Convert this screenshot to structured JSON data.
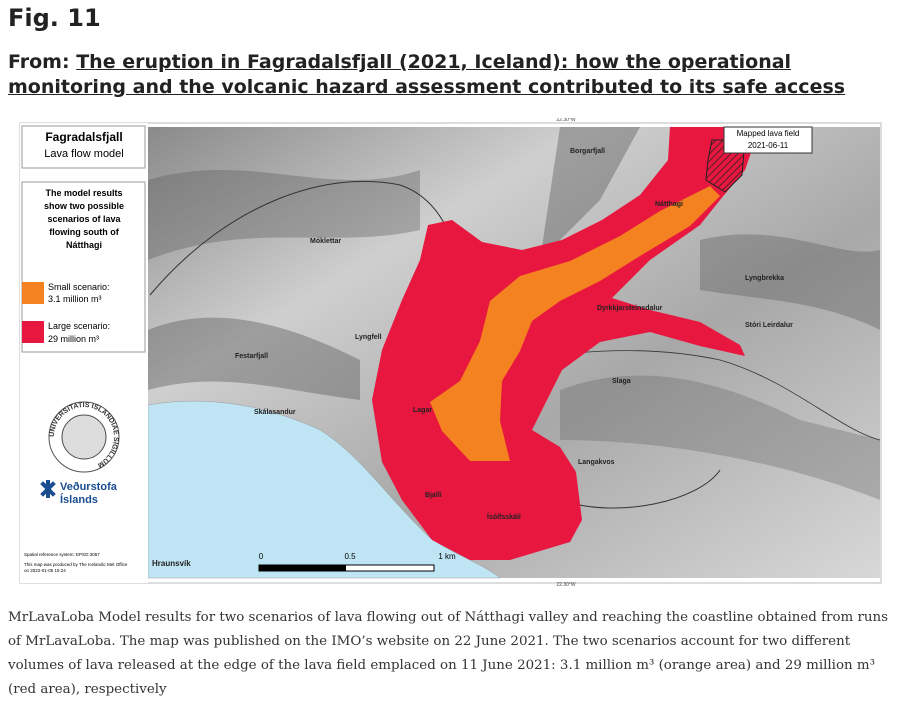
{
  "header": {
    "figure_label": "Fig. 11",
    "from_prefix": "From:",
    "article_title": "The eruption in Fagradalsfjall (2021, Iceland): how the operational monitoring and the volcanic hazard assessment contributed to its safe access"
  },
  "map": {
    "title": "Fagradalsfjall",
    "subtitle": "Lava flow model",
    "description": [
      "The model results",
      "show two possible",
      "scenarios of lava",
      "flowing south of",
      "Nátthagi"
    ],
    "legend": [
      {
        "label": "Small scenario:",
        "volume": "3.1 million m³"
      },
      {
        "label": "Large scenario:",
        "volume": "29 million m³"
      }
    ],
    "mapped_field": {
      "label": "Mapped lava field",
      "date": "2021-06-11"
    },
    "places": [
      "Borgarfjall",
      "Nátthagi",
      "Móklettar",
      "Lyngbrekka",
      "Dyrkkjarsteinsdalur",
      "Stóri Leirdalur",
      "Lyngfell",
      "Festarfjall",
      "Slaga",
      "Skálasandur",
      "Lagar",
      "Langakvos",
      "Bjalli",
      "Ísólfsskáli",
      "Hraunsvík"
    ],
    "scale": [
      "0",
      "0.5",
      "1 km"
    ],
    "coordinate": "22.30°W",
    "logo": {
      "seal": "UNIVERSITATIS ISLANDIAE SIGILLUM",
      "org_line1": "Veðurstofa",
      "org_line2": "Íslands"
    },
    "notes": [
      "Spatial reference system: EPSG:3057",
      "This map was produced by The Icelandic Met Office",
      "on 2022-01-05 15:24"
    ]
  },
  "caption": "MrLavaLoba Model results for two scenarios of lava flowing out of Nátthagi valley and reaching the coastline obtained from runs of MrLavaLoba. The map was published on the IMO’s website on 22 June 2021. The two scenarios account for two different volumes of lava released at the edge of the lava field emplaced on 11 June 2021: 3.1 million m³ (orange area) and 29 million m³ (red area), respectively"
}
